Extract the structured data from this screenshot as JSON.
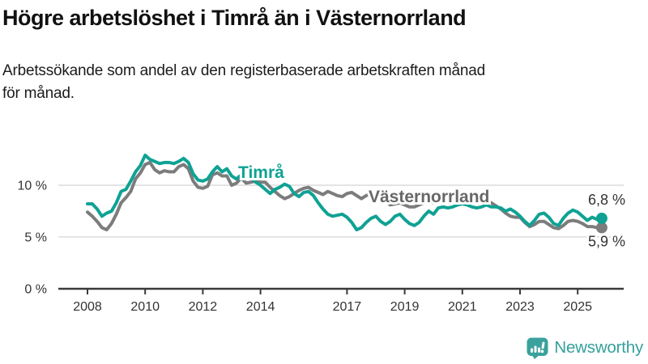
{
  "chart_data": {
    "type": "line",
    "title": "Högre arbetslöshet i Timrå än i Västernorrland",
    "subtitle": "Arbetssökande som andel av den registerbaserade arbetskraften månad för månad.",
    "subtitle_lines": [
      "Arbetssökande som andel av den registerbaserade arbetskraften månad",
      "för månad."
    ],
    "x_start": 2008.0,
    "x_step_years": 0.16667,
    "x_end": 2025.83,
    "xlim": [
      2006.9,
      2026.6
    ],
    "ylim": [
      0,
      14.8
    ],
    "grid": "horizontal",
    "legend": "inline-labels",
    "x_ticks": [
      {
        "value": 2008,
        "label": "2008"
      },
      {
        "value": 2010,
        "label": "2010"
      },
      {
        "value": 2012,
        "label": "2012"
      },
      {
        "value": 2014,
        "label": "2014"
      },
      {
        "value": 2017,
        "label": "2017"
      },
      {
        "value": 2019,
        "label": "2019"
      },
      {
        "value": 2021,
        "label": "2021"
      },
      {
        "value": 2023,
        "label": "2023"
      },
      {
        "value": 2025,
        "label": "2025"
      }
    ],
    "y_ticks": [
      {
        "value": 0,
        "label": "0 %"
      },
      {
        "value": 5,
        "label": "5 %"
      },
      {
        "value": 10,
        "label": "10 %"
      }
    ],
    "series": [
      {
        "name": "Västernorrland",
        "color": "#7c7c7c",
        "label_color": "#676767",
        "end_value": 5.9,
        "end_label": "5,9 %",
        "values": [
          7.4,
          7.0,
          6.5,
          5.9,
          5.7,
          6.3,
          7.2,
          8.3,
          8.8,
          9.4,
          10.6,
          11.2,
          12.0,
          12.2,
          11.5,
          11.2,
          11.4,
          11.3,
          11.3,
          11.8,
          12.0,
          11.6,
          10.4,
          9.8,
          9.7,
          9.9,
          11.0,
          11.2,
          10.9,
          10.9,
          10.0,
          10.2,
          10.7,
          10.2,
          10.3,
          10.4,
          10.3,
          10.3,
          9.8,
          9.4,
          9.0,
          8.7,
          8.9,
          9.2,
          9.5,
          9.7,
          9.8,
          9.5,
          9.3,
          9.1,
          9.4,
          9.2,
          9.0,
          8.9,
          9.2,
          9.3,
          9.0,
          8.7,
          9.0,
          9.2,
          9.2,
          8.8,
          8.5,
          8.1,
          8.2,
          8.3,
          8.1,
          7.9,
          7.9,
          8.1,
          8.3,
          8.4,
          8.3,
          8.5,
          8.6,
          8.5,
          8.5,
          8.6,
          8.6,
          8.5,
          8.4,
          8.4,
          8.5,
          8.4,
          8.3,
          8.0,
          7.7,
          7.3,
          7.0,
          6.9,
          6.9,
          6.4,
          6.0,
          6.2,
          6.5,
          6.5,
          6.2,
          5.9,
          5.8,
          6.1,
          6.5,
          6.6,
          6.5,
          6.3,
          6.0,
          6.0,
          5.9,
          5.9
        ]
      },
      {
        "name": "Timrå",
        "color": "#0fa294",
        "label_color": "#0fa294",
        "end_value": 6.8,
        "end_label": "6,8 %",
        "values": [
          8.2,
          8.2,
          7.7,
          7.0,
          7.3,
          7.5,
          8.3,
          9.4,
          9.6,
          10.4,
          11.3,
          11.9,
          12.9,
          12.5,
          12.3,
          12.1,
          12.2,
          12.2,
          12.1,
          12.3,
          12.6,
          12.2,
          11.1,
          10.5,
          10.4,
          10.6,
          11.3,
          11.8,
          11.3,
          11.6,
          10.9,
          10.6,
          11.0,
          11.5,
          10.8,
          10.3,
          10.0,
          9.6,
          9.2,
          9.6,
          9.8,
          10.1,
          9.9,
          9.2,
          8.9,
          9.3,
          9.4,
          9.0,
          8.3,
          7.7,
          7.2,
          7.0,
          7.1,
          7.2,
          6.9,
          6.4,
          5.7,
          5.9,
          6.4,
          6.8,
          7.0,
          6.5,
          6.2,
          6.5,
          7.0,
          7.2,
          6.7,
          6.3,
          6.1,
          6.4,
          7.0,
          7.5,
          7.2,
          7.8,
          7.9,
          7.8,
          7.9,
          8.1,
          8.2,
          8.1,
          7.9,
          7.8,
          7.9,
          8.1,
          7.9,
          7.9,
          7.8,
          7.5,
          7.7,
          7.4,
          7.0,
          6.5,
          6.1,
          6.6,
          7.2,
          7.3,
          6.9,
          6.3,
          6.1,
          6.8,
          7.3,
          7.6,
          7.4,
          7.0,
          6.6,
          6.9,
          6.7,
          6.8
        ]
      }
    ]
  },
  "footer": {
    "brand": "Newsworthy",
    "brand_color": "#35a19c",
    "logo_icon": "bar-chart-speech-bubble-icon"
  }
}
